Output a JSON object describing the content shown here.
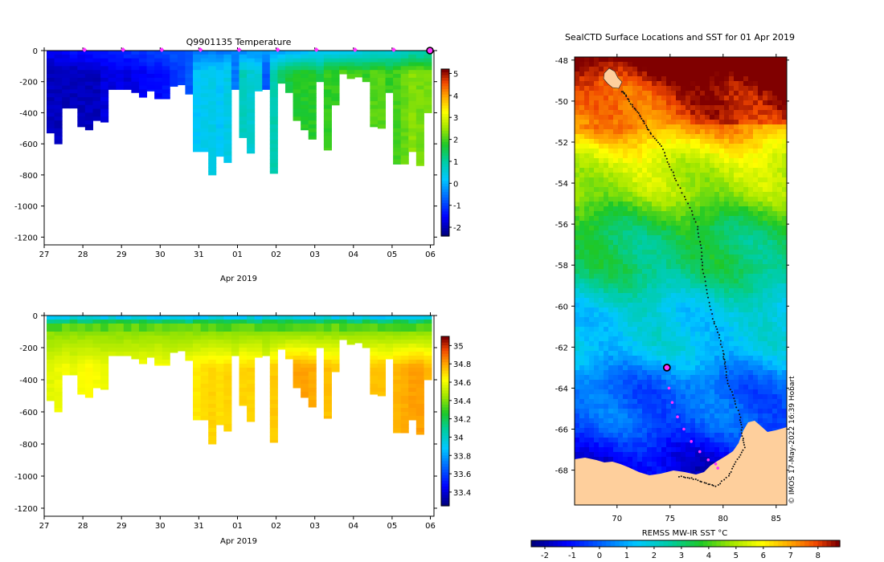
{
  "chart_data": [
    {
      "type": "heatmap",
      "title": "Q9901135  Temperature",
      "xlabel": "Apr 2019",
      "ylabel": "",
      "x_tick_labels": [
        "27",
        "28",
        "29",
        "30",
        "31",
        "01",
        "02",
        "03",
        "04",
        "05",
        "06"
      ],
      "y_tick_labels": [
        "0",
        "-200",
        "-400",
        "-600",
        "-800",
        "-1000",
        "-1200"
      ],
      "ylim": [
        -1250,
        0
      ],
      "x_range_days": [
        0,
        10
      ],
      "colorbar": {
        "ticks": [
          "5",
          "4",
          "3",
          "2",
          "1",
          "0",
          "-1",
          "-2"
        ],
        "range": [
          -2.4,
          5.2
        ]
      },
      "profile_markers_days": [
        1,
        2,
        3,
        4,
        5,
        6,
        7,
        8,
        9
      ],
      "series": [
        {
          "name": "profile depth (m)",
          "values": [
            -530,
            -600,
            -370,
            -370,
            -490,
            -510,
            -450,
            -460,
            -250,
            -250,
            -250,
            -270,
            -300,
            -260,
            -310,
            -310,
            -230,
            -220,
            -280,
            -650,
            -650,
            -800,
            -680,
            -720,
            -250,
            -560,
            -660,
            -260,
            -250,
            -790,
            -210,
            -270,
            -450,
            -510,
            -570,
            -200,
            -640,
            -350,
            -150,
            -180,
            -170,
            -200,
            -490,
            -500,
            -270,
            -730,
            -730,
            -650,
            -740,
            -400
          ]
        },
        {
          "name": "deep temperature (°C)",
          "values": [
            -2.0,
            -2.0,
            -2.0,
            -2.0,
            -2.0,
            -2.0,
            -2.0,
            -1.8,
            -1.8,
            -1.7,
            -1.8,
            -1.7,
            -1.6,
            -1.5,
            -1.5,
            -1.4,
            -1.2,
            -1.0,
            -0.8,
            0.2,
            0.3,
            0.4,
            0.2,
            0.4,
            -0.5,
            0.8,
            0.6,
            0.5,
            -0.8,
            0.9,
            1.4,
            1.6,
            1.8,
            1.8,
            1.8,
            1.5,
            1.9,
            1.9,
            2.2,
            2.0,
            2.0,
            1.9,
            2.1,
            2.1,
            1.9,
            2.0,
            2.2,
            2.4,
            2.3,
            2.3
          ]
        }
      ]
    },
    {
      "type": "heatmap",
      "title": "",
      "xlabel": "Apr 2019",
      "x_tick_labels": [
        "27",
        "28",
        "29",
        "30",
        "31",
        "01",
        "02",
        "03",
        "04",
        "05",
        "06"
      ],
      "y_tick_labels": [
        "0",
        "-200",
        "-400",
        "-600",
        "-800",
        "-1000",
        "-1200"
      ],
      "ylim": [
        -1250,
        0
      ],
      "colorbar": {
        "ticks": [
          "35",
          "34.8",
          "34.6",
          "34.4",
          "34.2",
          "34",
          "33.8",
          "33.6",
          "33.4"
        ],
        "range": [
          33.25,
          35.1
        ]
      },
      "series": [
        {
          "name": "deep salinity (psu)",
          "values": [
            34.58,
            34.6,
            34.62,
            34.6,
            34.62,
            34.64,
            34.62,
            34.6,
            34.62,
            34.6,
            34.62,
            34.6,
            34.63,
            34.62,
            34.64,
            34.62,
            34.6,
            34.63,
            34.65,
            34.68,
            34.7,
            34.72,
            34.7,
            34.72,
            34.62,
            34.72,
            34.72,
            34.7,
            34.62,
            34.74,
            34.78,
            34.8,
            34.82,
            34.82,
            34.8,
            34.74,
            34.76,
            34.74,
            34.76,
            34.72,
            34.74,
            34.72,
            34.76,
            34.76,
            34.74,
            34.78,
            34.8,
            34.82,
            34.82,
            34.78
          ]
        }
      ]
    },
    {
      "type": "heatmap",
      "title": "SealCTD Surface Locations and SST for 01 Apr 2019",
      "xlabel": "REMSS MW-IR SST °C",
      "x_tick_labels": [
        "70",
        "75",
        "80",
        "85"
      ],
      "y_tick_labels": [
        "-48",
        "-50",
        "-52",
        "-54",
        "-56",
        "-58",
        "-60",
        "-62",
        "-64",
        "-66",
        "-68"
      ],
      "xlim": [
        66,
        86
      ],
      "ylim": [
        -69.7,
        -47.85
      ],
      "colorbar": {
        "ticks": [
          "-2",
          "-1",
          "0",
          "1",
          "2",
          "3",
          "4",
          "5",
          "6",
          "7",
          "8"
        ],
        "range": [
          -2.5,
          8.8
        ]
      },
      "track": {
        "lon": [
          75.9,
          77,
          78.2,
          79.3,
          80.5,
          81.2,
          82.0,
          81.8,
          81.6,
          81.0,
          80.4,
          80.2,
          80.0,
          79.6,
          79.0,
          78.5,
          78.1,
          77.9,
          77.6,
          76.7,
          75.6,
          74.9,
          74.2,
          73.2,
          72.6,
          72.0,
          71.4,
          70.8,
          70.4
        ],
        "lat": [
          -68.3,
          -68.4,
          -68.6,
          -68.8,
          -68.3,
          -67.6,
          -66.9,
          -66.2,
          -65.4,
          -64.5,
          -63.6,
          -62.8,
          -62.3,
          -61.4,
          -60.6,
          -59.4,
          -58.2,
          -57.2,
          -56.1,
          -55.0,
          -53.9,
          -53.1,
          -52.2,
          -51.6,
          -51.1,
          -50.6,
          -50.2,
          -49.7,
          -49.5
        ]
      },
      "recent_positions": {
        "lon": [
          74.7,
          74.9,
          75.2,
          75.7,
          76.3,
          77.0,
          77.8,
          78.6,
          79.3,
          79.5
        ],
        "lat": [
          -63.0,
          -64.0,
          -64.7,
          -65.4,
          -66.0,
          -66.6,
          -67.1,
          -67.5,
          -67.7,
          -67.9
        ]
      },
      "current_position": {
        "lon": 74.7,
        "lat": -63.0
      }
    }
  ],
  "footer": {
    "credit": "© IMOS 17-May-2022 16:39 Hobart"
  },
  "colors": {
    "land": "#fecf9c",
    "marker": "#ff33ff",
    "background": "#ffffff"
  }
}
